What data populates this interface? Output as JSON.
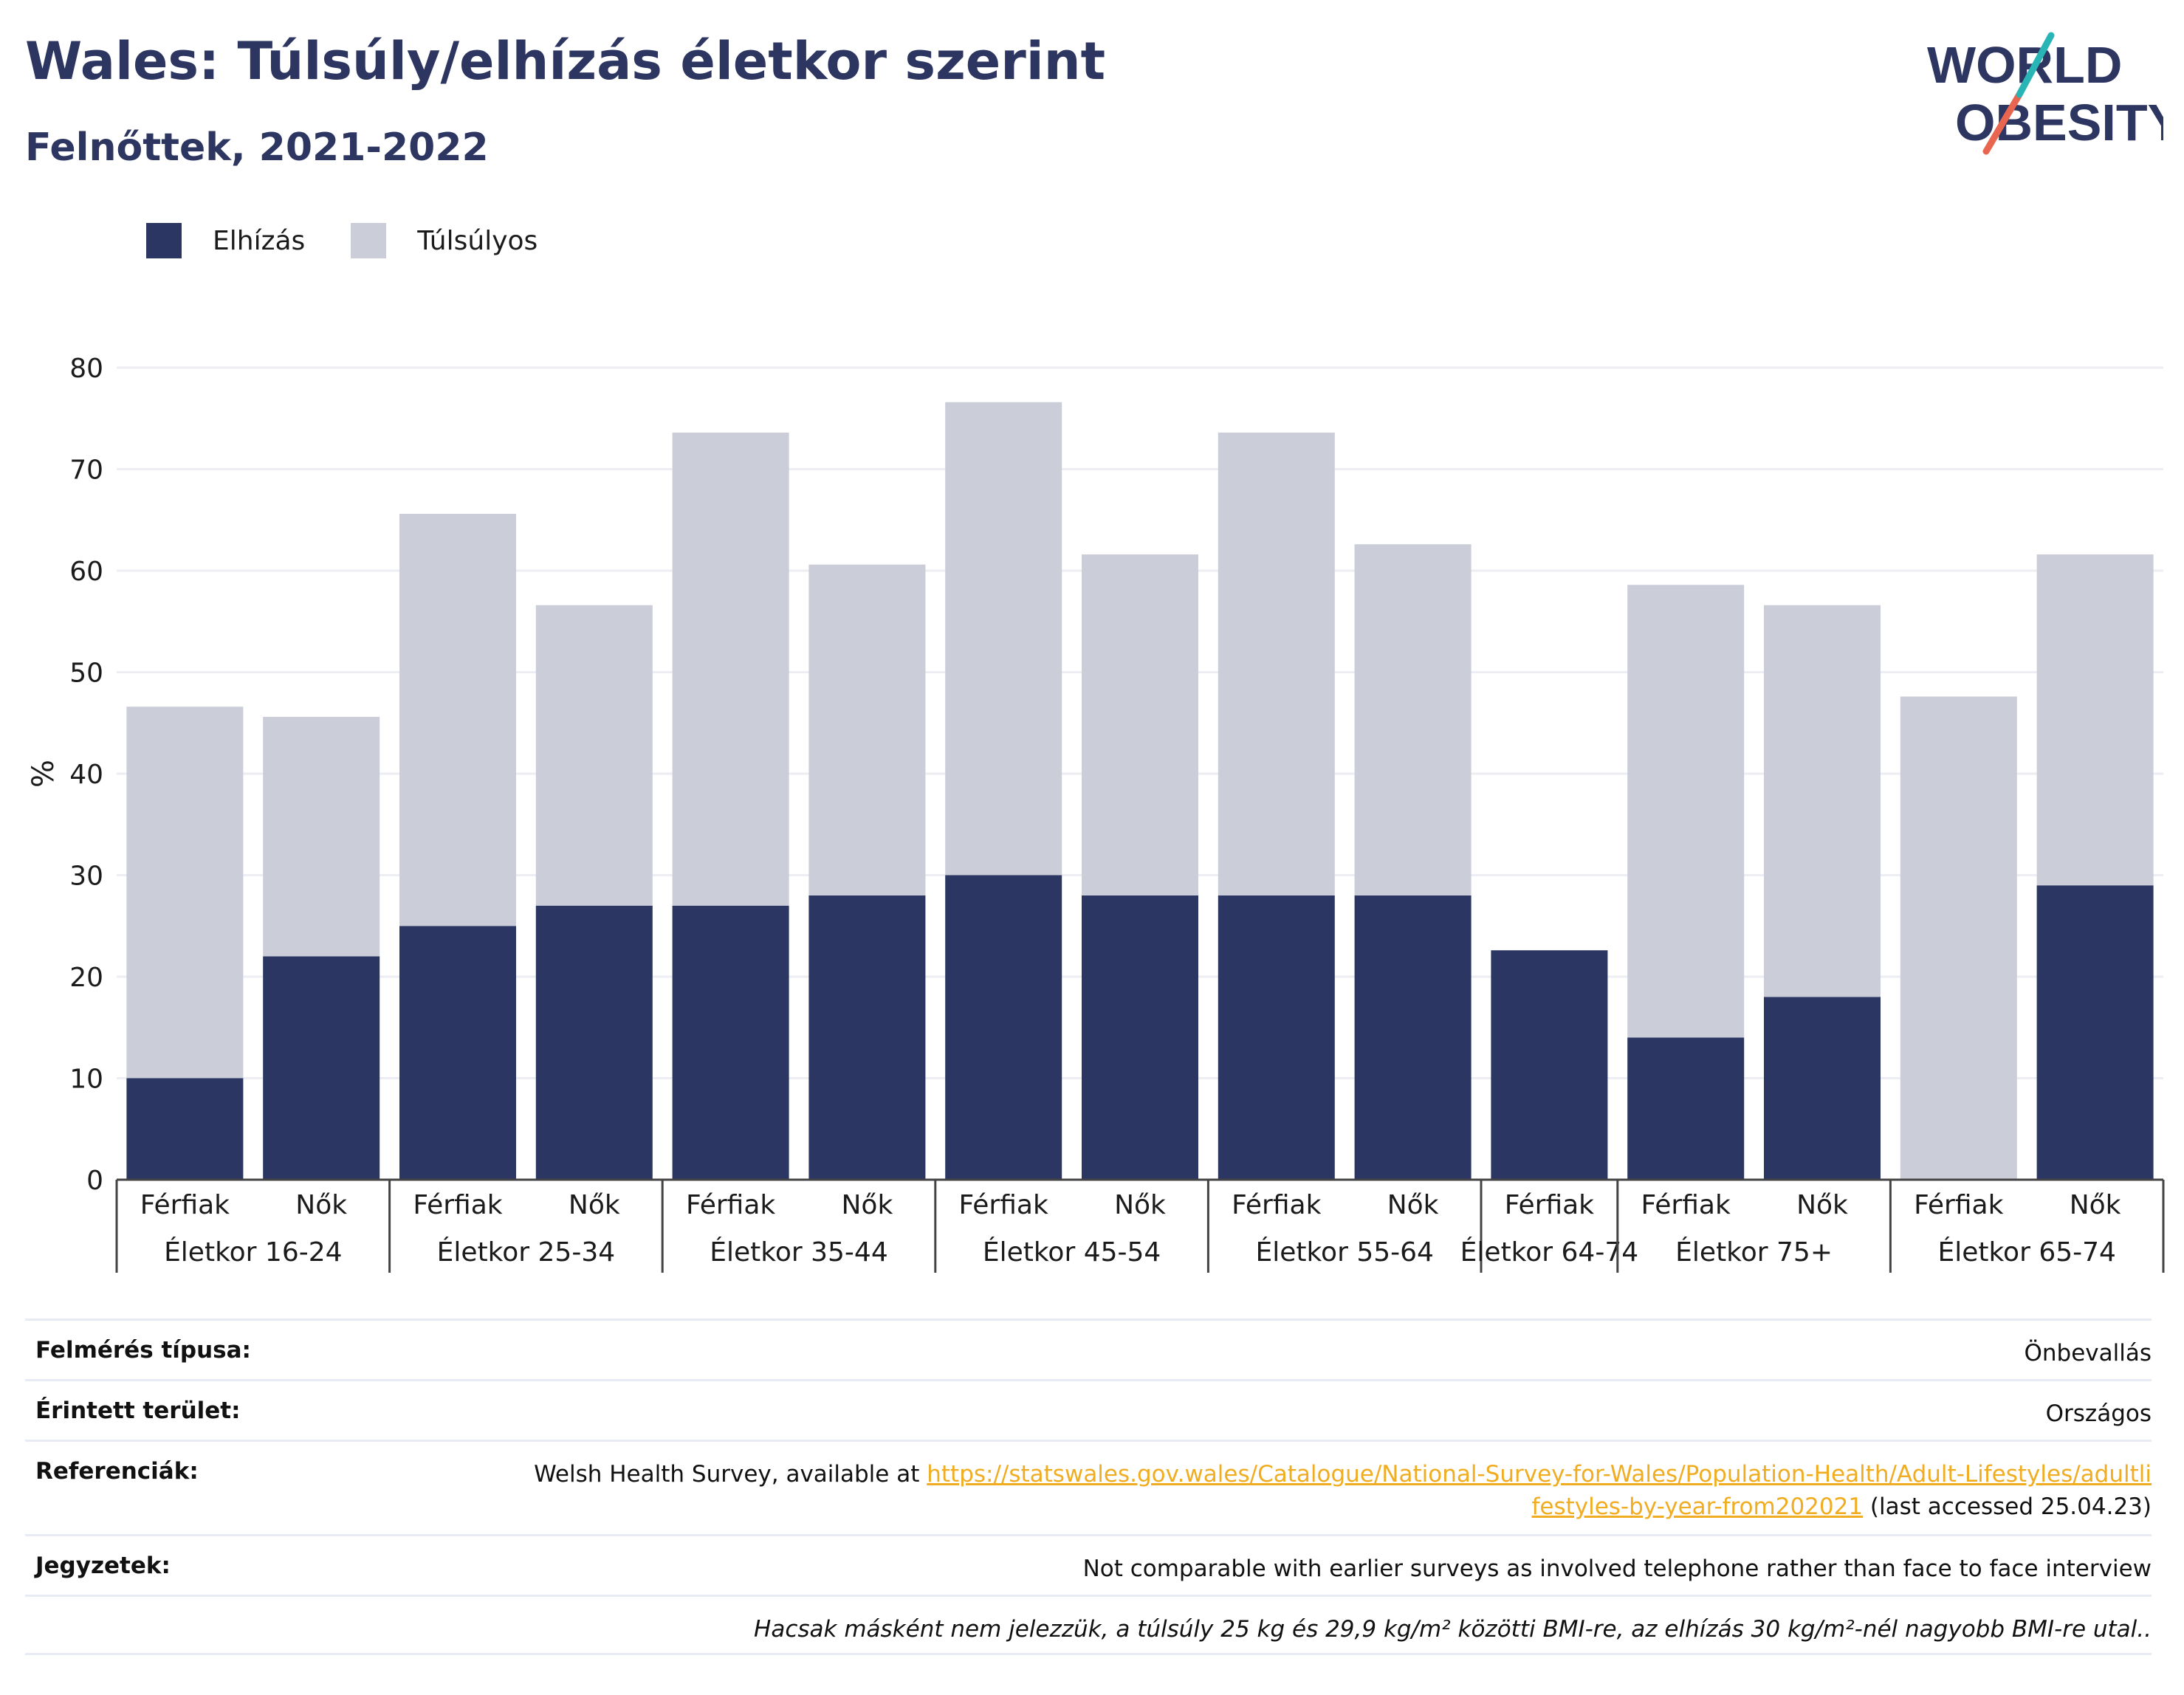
{
  "title": "Wales: Túlsúly/elhízás életkor szerint",
  "subtitle": "Felnőttek, 2021-2022",
  "logo": {
    "line1": "WORLD",
    "line2": "OBESITY"
  },
  "legend": [
    {
      "label": "Elhízás",
      "color": "#2b3663"
    },
    {
      "label": "Túlsúlyos",
      "color": "#cbcdd9"
    }
  ],
  "chart_data": {
    "type": "bar",
    "stacked": true,
    "ylabel": "%",
    "ylim": [
      0,
      80
    ],
    "yticks": [
      0,
      10,
      20,
      30,
      40,
      50,
      60,
      70,
      80
    ],
    "grid": true,
    "legend_position": "top-left",
    "categories": [
      {
        "sex": "Férfiak",
        "group": "Életkor 16-24"
      },
      {
        "sex": "Nők",
        "group": "Életkor 16-24"
      },
      {
        "sex": "Férfiak",
        "group": "Életkor 25-34"
      },
      {
        "sex": "Nők",
        "group": "Életkor 25-34"
      },
      {
        "sex": "Férfiak",
        "group": "Életkor 35-44"
      },
      {
        "sex": "Nők",
        "group": "Életkor 35-44"
      },
      {
        "sex": "Férfiak",
        "group": "Életkor 45-54"
      },
      {
        "sex": "Nők",
        "group": "Életkor 45-54"
      },
      {
        "sex": "Férfiak",
        "group": "Életkor 55-64"
      },
      {
        "sex": "Nők",
        "group": "Életkor 55-64"
      },
      {
        "sex": "Férfiak",
        "group": "Életkor 64-74"
      },
      {
        "sex": "Férfiak",
        "group": "Életkor 75+"
      },
      {
        "sex": "Nők",
        "group": "Életkor 75+"
      },
      {
        "sex": "Férfiak",
        "group": "Életkor 65-74"
      },
      {
        "sex": "Nők",
        "group": "Életkor 65-74"
      }
    ],
    "groups": [
      "Életkor 16-24",
      "Életkor 25-34",
      "Életkor 35-44",
      "Életkor 45-54",
      "Életkor 55-64",
      "Életkor 64-74",
      "Életkor 75+",
      "Életkor 65-74"
    ],
    "series": [
      {
        "name": "Elhízás",
        "color": "#2b3663",
        "values": [
          10,
          22,
          25,
          27,
          27,
          28,
          30,
          28,
          28,
          28,
          22.6,
          14,
          18,
          null,
          29
        ]
      },
      {
        "name": "Túlsúlyos",
        "color": "#cbcdd9",
        "values": [
          36.6,
          23.6,
          40.6,
          29.6,
          46.6,
          32.6,
          46.6,
          33.6,
          45.6,
          34.6,
          null,
          44.6,
          38.6,
          47.6,
          32.6
        ]
      }
    ]
  },
  "meta": {
    "survey_type_label": "Felmérés típusa:",
    "survey_type_value": "Önbevallás",
    "area_label": "Érintett terület:",
    "area_value": "Országos",
    "references_label": "Referenciák:",
    "references_prefix": "Welsh Health Survey, available at ",
    "references_link": "https://statswales.gov.wales/Catalogue/National-Survey-for-Wales/Population-Health/Adult-Lifestyles/adultlifestyles-by-year-from202021",
    "references_suffix": " (last accessed 25.04.23)",
    "notes_label": "Jegyzetek:",
    "notes_value": "Not comparable with earlier surveys as involved telephone rather than face to face interview",
    "footnote": "Hacsak másként nem jelezzük, a túlsúly 25 kg és 29,9 kg/m² közötti BMI-re, az elhízás 30 kg/m²-nél nagyobb BMI-re utal.."
  }
}
